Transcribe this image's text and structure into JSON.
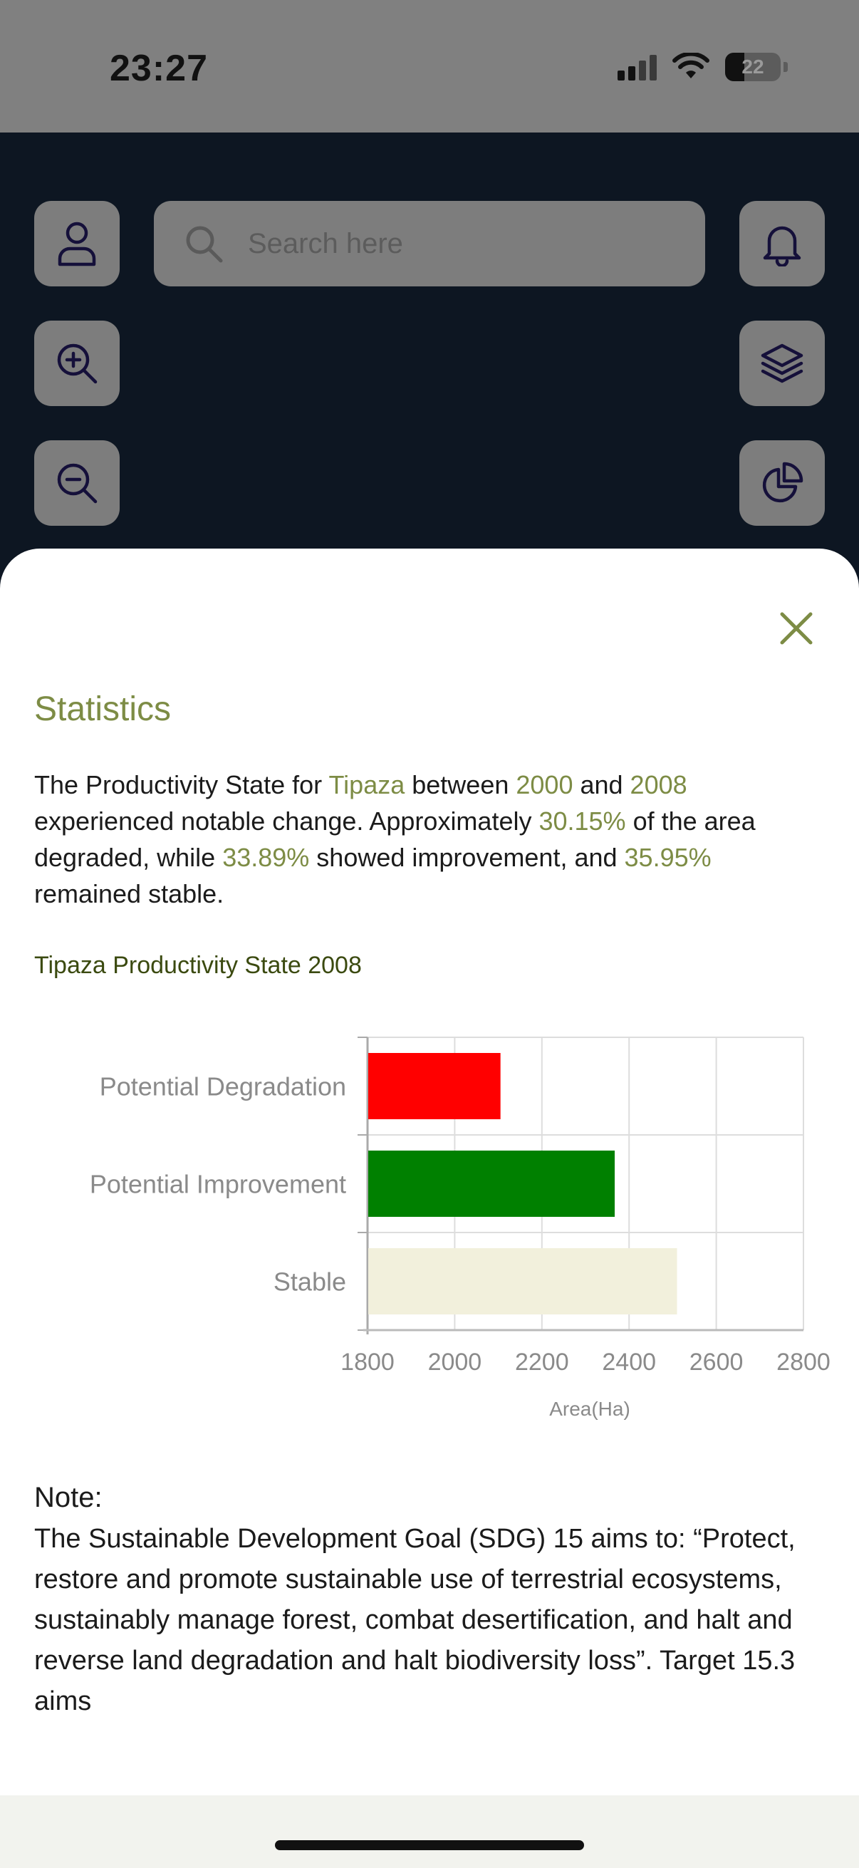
{
  "status_bar": {
    "time": "23:27",
    "battery_percent": "22",
    "icons": [
      "signal-icon",
      "wifi-icon",
      "battery-icon"
    ]
  },
  "map": {
    "search": {
      "placeholder": "Search here"
    },
    "buttons": [
      "profile-icon",
      "zoom-in-icon",
      "zoom-out-icon",
      "bell-icon",
      "layers-icon",
      "pie-chart-icon"
    ]
  },
  "sheet": {
    "close_icon": "close-icon",
    "title": "Statistics",
    "summary": {
      "p1": "The Productivity State for ",
      "region": "Tipaza",
      "p2": " between ",
      "year_start": "2000",
      "p3": " and ",
      "year_end": "2008",
      "p4": " experienced notable change. Approximately ",
      "degraded_pct": "30.15%",
      "p5": " of the area degraded, while ",
      "improved_pct": "33.89%",
      "p6": " showed improvement, and ",
      "stable_pct": "35.95%",
      "p7": " remained stable."
    },
    "chart_title": "Tipaza Productivity State 2008",
    "note_heading": "Note:",
    "note_text": "The Sustainable Development Goal (SDG) 15 aims to: “Protect, restore and promote sustainable use of terrestrial ecosystems, sustainably manage forest, combat desertification, and halt and reverse land degradation and halt biodiversity loss”. Target 15.3 aims"
  },
  "colors": {
    "accent": "#7d8c45",
    "bar_degradation": "#ff0000",
    "bar_improvement": "#008000",
    "bar_stable": "#f2f0dc"
  },
  "chart_data": {
    "type": "bar",
    "orientation": "horizontal",
    "title": "Tipaza Productivity State 2008",
    "categories": [
      "Potential Degradation",
      "Potential Improvement",
      "Stable"
    ],
    "values": [
      2105,
      2367,
      2510
    ],
    "colors": [
      "#ff0000",
      "#008000",
      "#f2f0dc"
    ],
    "xlabel": "Area(Ha)",
    "ylabel": "",
    "xlim": [
      1800,
      2800
    ],
    "xticks": [
      "1800",
      "2000",
      "2200",
      "2400",
      "2600",
      "2800"
    ],
    "grid": true,
    "legend": "none"
  }
}
